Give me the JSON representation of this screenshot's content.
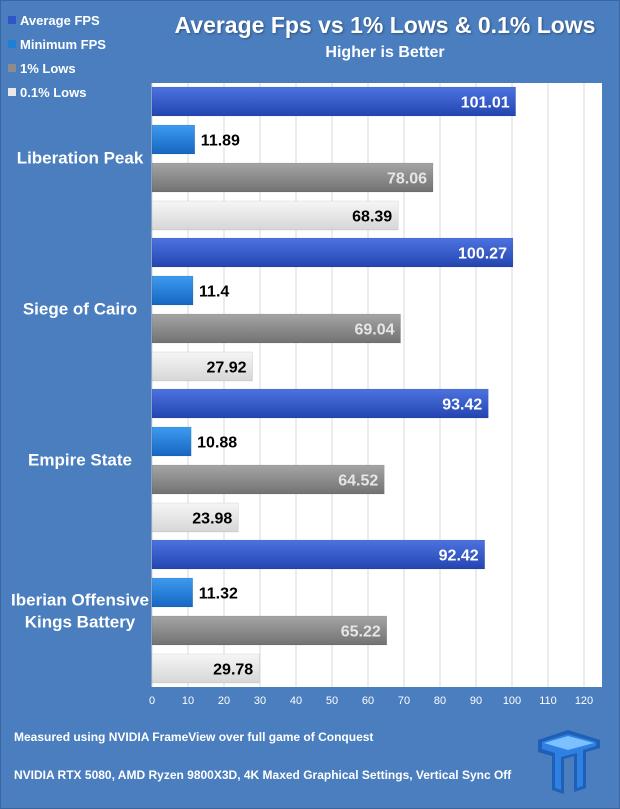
{
  "title": "Average Fps vs 1% Lows & 0.1% Lows",
  "subtitle": "Higher is Better",
  "footer": {
    "line1": "Measured using NVIDIA FrameView over full game of Conquest",
    "line2": "NVIDIA RTX 5080, AMD Ryzen 9800X3D, 4K Maxed Graphical Settings, Vertical Sync Off"
  },
  "logo": {
    "name": "tweaktown-logo-icon"
  },
  "colors": {
    "background": "#4a7ebf",
    "plot_area": "#ffffff",
    "grid": "#d9d9d9",
    "avg": "#2f55c8",
    "min": "#1f7fd6",
    "low1": "#8c8c8c",
    "low01": "#e9e9e9"
  },
  "chart_data": {
    "type": "bar",
    "orientation": "horizontal",
    "title": "Average Fps vs 1% Lows & 0.1% Lows",
    "subtitle": "Higher is Better",
    "categories": [
      "Liberation Peak",
      "Siege of Cairo",
      "Empire State",
      "Iberian Offensive Kings Battery"
    ],
    "category_lines": [
      [
        "Liberation Peak"
      ],
      [
        "Siege of Cairo"
      ],
      [
        "Empire State"
      ],
      [
        "Iberian Offensive",
        "Kings Battery"
      ]
    ],
    "series": [
      {
        "name": "Average FPS",
        "values": [
          101.01,
          100.27,
          93.42,
          92.42
        ],
        "labels": [
          "101.01",
          "100.27",
          "93.42",
          "92.42"
        ],
        "color": "#2f55c8",
        "label_color": "#ffffff",
        "label_inside": true
      },
      {
        "name": "Minimum FPS",
        "values": [
          11.89,
          11.4,
          10.88,
          11.32
        ],
        "labels": [
          "11.89",
          "11.4",
          "10.88",
          "11.32"
        ],
        "color": "#1f7fd6",
        "label_color": "#000000",
        "label_inside": false
      },
      {
        "name": "1% Lows",
        "values": [
          78.06,
          69.04,
          64.52,
          65.22
        ],
        "labels": [
          "78.06",
          "69.04",
          "64.52",
          "65.22"
        ],
        "color": "#8c8c8c",
        "label_color": "#e6e6e6",
        "label_inside": true
      },
      {
        "name": "0.1% Lows",
        "values": [
          68.39,
          27.92,
          23.98,
          29.78
        ],
        "labels": [
          "68.39",
          "27.92",
          "23.98",
          "29.78"
        ],
        "color": "#e9e9e9",
        "label_color": "#000000",
        "label_inside": true
      }
    ],
    "xlim": [
      0,
      125
    ],
    "xticks": [
      0,
      10,
      20,
      30,
      40,
      50,
      60,
      70,
      80,
      90,
      100,
      110,
      120
    ],
    "xlabel": "",
    "ylabel": "",
    "grid": true,
    "legend": "top-left"
  }
}
